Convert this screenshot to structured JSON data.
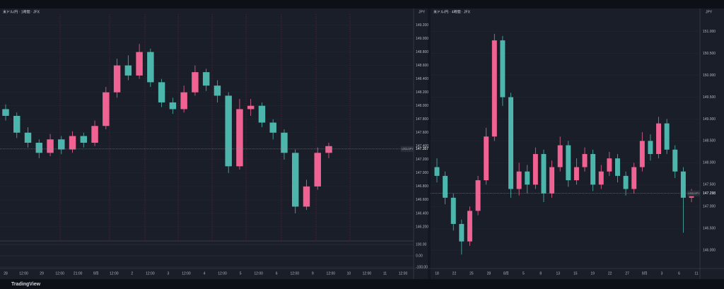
{
  "brand": "TradingView",
  "chart_data": [
    {
      "type": "candlestick",
      "title": "米ドル/円 · 1時間 · JFX",
      "currency": "JPY",
      "up_color": "#f06292",
      "down_color": "#4db6ac",
      "grid": true,
      "open": [
        147.95,
        147.85,
        147.6,
        147.45,
        147.3,
        147.5,
        147.35,
        147.55,
        147.45,
        147.7,
        148.2,
        148.6,
        148.45,
        148.8,
        148.35,
        148.05,
        147.95,
        148.2,
        148.5,
        148.3,
        148.15,
        147.1,
        147.95,
        148.0,
        147.75,
        147.6,
        147.3,
        146.5,
        146.8,
        147.3
      ],
      "high": [
        148.02,
        147.9,
        147.68,
        147.5,
        147.58,
        147.55,
        147.62,
        147.6,
        147.78,
        148.28,
        148.7,
        148.75,
        148.92,
        148.85,
        148.4,
        148.12,
        148.3,
        148.6,
        148.55,
        148.38,
        148.2,
        148.1,
        148.1,
        148.05,
        147.8,
        147.65,
        147.35,
        146.9,
        147.38,
        147.45
      ],
      "low": [
        147.78,
        147.52,
        147.38,
        147.22,
        147.25,
        147.28,
        147.3,
        147.38,
        147.4,
        147.65,
        148.12,
        148.38,
        148.4,
        148.28,
        147.98,
        147.88,
        147.9,
        148.15,
        148.22,
        148.05,
        147.0,
        147.05,
        147.85,
        147.68,
        147.5,
        147.2,
        146.4,
        146.45,
        146.75,
        147.22
      ],
      "close": [
        147.85,
        147.6,
        147.45,
        147.3,
        147.5,
        147.35,
        147.55,
        147.45,
        147.7,
        148.2,
        148.6,
        148.45,
        148.8,
        148.35,
        148.05,
        147.95,
        148.2,
        148.5,
        148.3,
        148.15,
        147.1,
        147.95,
        148.0,
        147.75,
        147.6,
        147.3,
        146.5,
        146.8,
        147.3,
        147.4
      ],
      "ylim": [
        146.0,
        149.3
      ],
      "yticks": [
        {
          "value": 149.2,
          "label": "149.200"
        },
        {
          "value": 149.0,
          "label": "149.000"
        },
        {
          "value": 148.8,
          "label": "148.800"
        },
        {
          "value": 148.6,
          "label": "148.600"
        },
        {
          "value": 148.4,
          "label": "148.400"
        },
        {
          "value": 148.2,
          "label": "148.200"
        },
        {
          "value": 148.0,
          "label": "148.000"
        },
        {
          "value": 147.8,
          "label": "147.800"
        },
        {
          "value": 147.6,
          "label": "147.600"
        },
        {
          "value": 147.4,
          "label": "147.400"
        },
        {
          "value": 147.2,
          "label": "147.200"
        },
        {
          "value": 147.0,
          "label": "147.000"
        },
        {
          "value": 146.8,
          "label": "146.800"
        },
        {
          "value": 146.6,
          "label": "146.600"
        },
        {
          "value": 146.4,
          "label": "146.400"
        },
        {
          "value": 146.2,
          "label": "146.200"
        }
      ],
      "price_label": "USD/JPY",
      "price_tag": 147.357,
      "oscillator_ticks": [
        {
          "value": 100,
          "label": "100.00"
        },
        {
          "value": 0,
          "label": "0.00"
        },
        {
          "value": -100,
          "label": "-100.00"
        }
      ],
      "x_axis_labels": [
        "28",
        "12:00",
        "29",
        "12:00",
        "21:00",
        "9月",
        "12:00",
        "2",
        "12:00",
        "3",
        "12:00",
        "4",
        "12:00",
        "5",
        "12:00",
        "6",
        "12:00",
        "9",
        "12:00",
        "10",
        "12:00",
        "11",
        "12:00"
      ]
    },
    {
      "type": "candlestick",
      "title": "米ドル/円 · 4時間 · JFX",
      "currency": "JPY",
      "up_color": "#f06292",
      "down_color": "#4db6ac",
      "grid": true,
      "open": [
        147.9,
        147.7,
        147.2,
        146.6,
        146.2,
        146.9,
        147.6,
        148.6,
        150.8,
        149.5,
        147.4,
        147.8,
        147.5,
        148.2,
        147.3,
        147.9,
        148.4,
        147.6,
        147.9,
        148.2,
        147.5,
        147.8,
        148.1,
        147.7,
        147.4,
        147.9,
        148.5,
        148.2,
        148.9,
        148.3,
        147.8,
        147.2
      ],
      "high": [
        148.1,
        147.8,
        147.3,
        146.7,
        147.0,
        147.7,
        148.8,
        150.95,
        150.9,
        149.6,
        148.0,
        147.95,
        148.35,
        148.3,
        148.05,
        148.6,
        148.5,
        148.1,
        148.35,
        148.3,
        147.95,
        148.25,
        148.2,
        147.8,
        148.0,
        148.7,
        148.65,
        149.05,
        149.0,
        148.4,
        147.9,
        147.4
      ],
      "low": [
        147.55,
        147.05,
        146.45,
        145.9,
        146.1,
        146.8,
        147.5,
        148.5,
        149.3,
        147.2,
        147.25,
        147.3,
        147.4,
        147.1,
        147.2,
        147.8,
        147.45,
        147.5,
        147.8,
        147.35,
        147.4,
        147.7,
        147.55,
        147.25,
        147.3,
        147.8,
        148.05,
        148.1,
        148.2,
        147.65,
        146.4,
        147.1
      ],
      "close": [
        147.7,
        147.2,
        146.6,
        146.2,
        146.9,
        147.6,
        148.6,
        150.8,
        149.5,
        147.4,
        147.8,
        147.5,
        148.2,
        147.3,
        147.9,
        148.4,
        147.6,
        147.9,
        148.2,
        147.5,
        147.8,
        148.1,
        147.7,
        147.4,
        147.9,
        148.5,
        148.2,
        148.9,
        148.3,
        147.8,
        147.2,
        147.3
      ],
      "ylim": [
        145.5,
        151.4
      ],
      "yticks": [
        {
          "value": 151.0,
          "label": "151.000"
        },
        {
          "value": 150.5,
          "label": "150.500"
        },
        {
          "value": 150.0,
          "label": "150.000"
        },
        {
          "value": 149.5,
          "label": "149.500"
        },
        {
          "value": 149.0,
          "label": "149.000"
        },
        {
          "value": 148.5,
          "label": "148.500"
        },
        {
          "value": 148.0,
          "label": "148.000"
        },
        {
          "value": 147.5,
          "label": "147.500"
        },
        {
          "value": 147.0,
          "label": "147.000"
        },
        {
          "value": 146.5,
          "label": "146.500"
        },
        {
          "value": 146.0,
          "label": "146.000"
        }
      ],
      "price_label": "USD/JPY",
      "price_tag": 147.298,
      "x_axis_labels": [
        "18",
        "22",
        "25",
        "28",
        "8月",
        "5",
        "8",
        "13",
        "15",
        "19",
        "22",
        "27",
        "9月",
        "3",
        "6",
        "11"
      ]
    }
  ]
}
